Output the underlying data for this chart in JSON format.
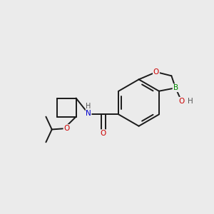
{
  "background_color": "#ebebeb",
  "bond_color": "#1a1a1a",
  "bond_width": 1.4,
  "atom_colors": {
    "C": "#1a1a1a",
    "N": "#0000cc",
    "O": "#cc0000",
    "B": "#008800",
    "H": "#555555"
  },
  "figsize": [
    3.0,
    3.0
  ],
  "dpi": 100,
  "xlim": [
    0,
    10
  ],
  "ylim": [
    0,
    10
  ]
}
